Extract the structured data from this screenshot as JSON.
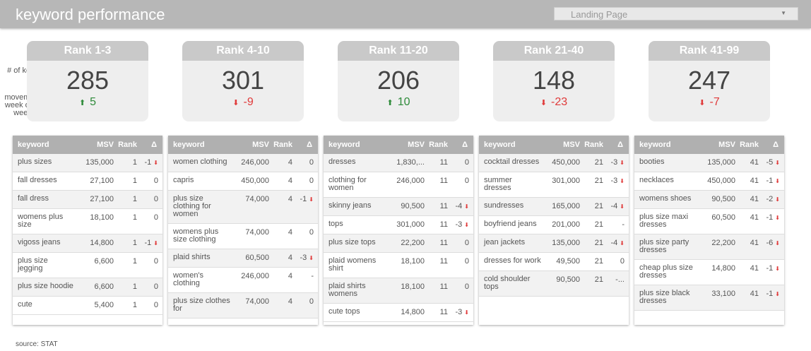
{
  "header": {
    "title": "keyword performance",
    "dropdown_value": "Landing Page"
  },
  "labels": {
    "keywords": "# of keywords",
    "movement": "movement week over week"
  },
  "cards": [
    {
      "label": "Rank 1-3",
      "count": "285",
      "movement": "5",
      "direction": "up"
    },
    {
      "label": "Rank 4-10",
      "count": "301",
      "movement": "-9",
      "direction": "down"
    },
    {
      "label": "Rank 11-20",
      "count": "206",
      "movement": "10",
      "direction": "up"
    },
    {
      "label": "Rank 21-40",
      "count": "148",
      "movement": "-23",
      "direction": "down"
    },
    {
      "label": "Rank 41-99",
      "count": "247",
      "movement": "-7",
      "direction": "down"
    }
  ],
  "columns": [
    "keyword",
    "MSV",
    "Rank",
    "Δ"
  ],
  "tables": [
    [
      [
        "plus sizes",
        "135,000",
        "1",
        "-1"
      ],
      [
        "fall dresses",
        "27,100",
        "1",
        "0"
      ],
      [
        "fall dress",
        "27,100",
        "1",
        "0"
      ],
      [
        "womens plus size",
        "18,100",
        "1",
        "0"
      ],
      [
        "vigoss jeans",
        "14,800",
        "1",
        "-1"
      ],
      [
        "plus size jegging",
        "6,600",
        "1",
        "0"
      ],
      [
        "plus size hoodie",
        "6,600",
        "1",
        "0"
      ],
      [
        "cute",
        "5,400",
        "1",
        "0"
      ]
    ],
    [
      [
        "women clothing",
        "246,000",
        "4",
        "0"
      ],
      [
        "capris",
        "450,000",
        "4",
        "0"
      ],
      [
        "plus size clothing for women",
        "74,000",
        "4",
        "-1"
      ],
      [
        "womens plus size clothing",
        "74,000",
        "4",
        "0"
      ],
      [
        "plaid shirts",
        "60,500",
        "4",
        "-3"
      ],
      [
        "women's clothing",
        "246,000",
        "4",
        "-"
      ],
      [
        "plus size clothes for",
        "74,000",
        "4",
        "0"
      ]
    ],
    [
      [
        "dresses",
        "1,830,...",
        "11",
        "0"
      ],
      [
        "clothing for women",
        "246,000",
        "11",
        "0"
      ],
      [
        "skinny jeans",
        "90,500",
        "11",
        "-4"
      ],
      [
        "tops",
        "301,000",
        "11",
        "-3"
      ],
      [
        "plus size tops",
        "22,200",
        "11",
        "0"
      ],
      [
        "plaid womens shirt",
        "18,100",
        "11",
        "0"
      ],
      [
        "plaid shirts womens",
        "18,100",
        "11",
        "0"
      ],
      [
        "cute tops",
        "14,800",
        "11",
        "-3"
      ]
    ],
    [
      [
        "cocktail dresses",
        "450,000",
        "21",
        "-3"
      ],
      [
        "summer dresses",
        "301,000",
        "21",
        "-3"
      ],
      [
        "sundresses",
        "165,000",
        "21",
        "-4"
      ],
      [
        "boyfriend jeans",
        "201,000",
        "21",
        "-"
      ],
      [
        "jean jackets",
        "135,000",
        "21",
        "-4"
      ],
      [
        "dresses for work",
        "49,500",
        "21",
        "0"
      ],
      [
        "cold shoulder tops",
        "90,500",
        "21",
        "-..."
      ]
    ],
    [
      [
        "booties",
        "135,000",
        "41",
        "-5"
      ],
      [
        "necklaces",
        "450,000",
        "41",
        "-1"
      ],
      [
        "womens shoes",
        "90,500",
        "41",
        "-2"
      ],
      [
        "plus size maxi dresses",
        "60,500",
        "41",
        "-1"
      ],
      [
        "plus size party dresses",
        "22,200",
        "41",
        "-6"
      ],
      [
        "cheap plus size dresses",
        "14,800",
        "41",
        "-1"
      ],
      [
        "plus size black dresses",
        "33,100",
        "41",
        "-1"
      ]
    ]
  ],
  "footer": {
    "source": "source: STAT"
  },
  "colors": {
    "up": "#2e8b3a",
    "down": "#e03a3a",
    "header": "#b7b7b7"
  }
}
